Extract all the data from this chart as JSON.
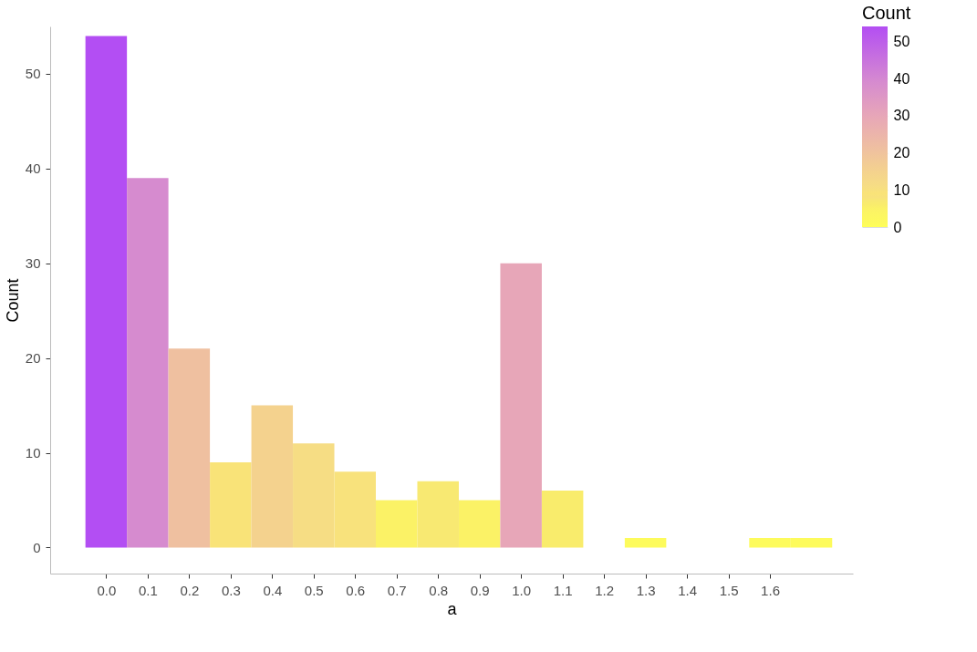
{
  "chart_data": {
    "type": "histogram",
    "xlabel": "a",
    "ylabel": "Count",
    "legend_title": "Count",
    "bins": [
      -0.05,
      0.05,
      0.15,
      0.25,
      0.35,
      0.45,
      0.55,
      0.65,
      0.75,
      0.85,
      0.95,
      1.05,
      1.15,
      1.25,
      1.35,
      1.45,
      1.55,
      1.65,
      1.75
    ],
    "values": [
      54,
      39,
      21,
      9,
      15,
      11,
      8,
      5,
      7,
      5,
      30,
      6,
      0,
      1,
      0,
      0,
      1,
      1
    ],
    "colors": [
      "#b34ef3",
      "#d68bcf",
      "#efc0a0",
      "#f9e378",
      "#f4d28e",
      "#f6dd84",
      "#f8e27c",
      "#fbf266",
      "#f8e972",
      "#fbf266",
      "#e7a6b8",
      "#f9ec6c",
      "#ffff58",
      "#fdfb5c",
      "#ffff58",
      "#ffff58",
      "#fdfb5c",
      "#fdfb5c"
    ],
    "xlim": [
      -0.135,
      1.8
    ],
    "xticks": [
      {
        "value": 0,
        "label": "0.0"
      },
      {
        "value": 0.1,
        "label": "0.1"
      },
      {
        "value": 0.2,
        "label": "0.2"
      },
      {
        "value": 0.3,
        "label": "0.3"
      },
      {
        "value": 0.4,
        "label": "0.4"
      },
      {
        "value": 0.5,
        "label": "0.5"
      },
      {
        "value": 0.6,
        "label": "0.6"
      },
      {
        "value": 0.7,
        "label": "0.7"
      },
      {
        "value": 0.8,
        "label": "0.8"
      },
      {
        "value": 0.9,
        "label": "0.9"
      },
      {
        "value": 1.0,
        "label": "1.0"
      },
      {
        "value": 1.1,
        "label": "1.1"
      },
      {
        "value": 1.2,
        "label": "1.2"
      },
      {
        "value": 1.3,
        "label": "1.3"
      },
      {
        "value": 1.4,
        "label": "1.4"
      },
      {
        "value": 1.5,
        "label": "1.5"
      },
      {
        "value": 1.6,
        "label": "1.6"
      }
    ],
    "ylim": [
      -2.75,
      55
    ],
    "yticks": [
      0,
      10,
      20,
      30,
      40,
      50
    ],
    "clim": [
      0,
      54
    ],
    "cticks": [
      0,
      10,
      20,
      30,
      40,
      50
    ],
    "grid": false
  }
}
